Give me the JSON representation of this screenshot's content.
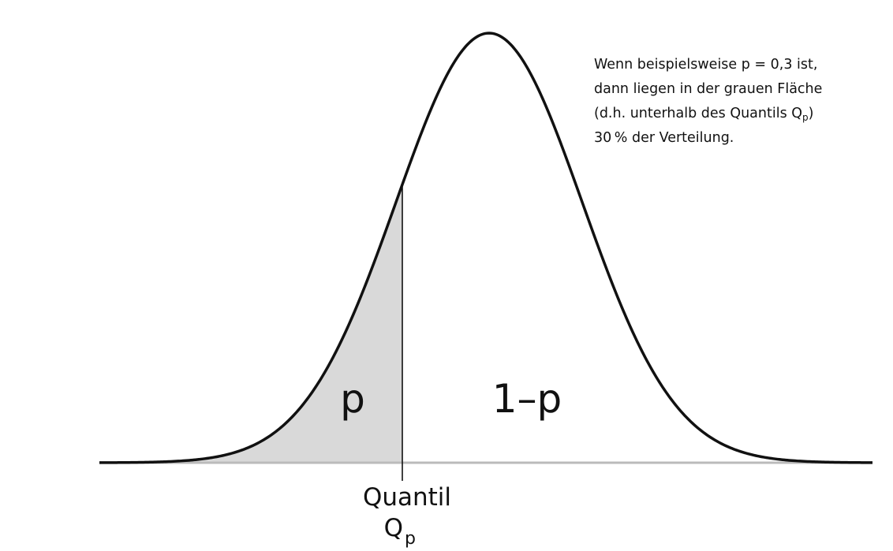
{
  "diagram": {
    "area_left_label": "p",
    "area_right_label": "1–p",
    "quantile_label": "Quantil",
    "quantile_symbol": "Q",
    "quantile_subscript": "p"
  },
  "note": {
    "line1": "Wenn beispielsweise p = 0,3 ist,",
    "line2": "dann liegen in der grauen Fläche",
    "line3_pre": "(d.h. unterhalb des Quantils Q",
    "line3_sub": "p",
    "line3_post": ")",
    "line4": "30 % der Verteilung."
  },
  "colors": {
    "curve": "#111111",
    "shaded_area": "#d9d9d9",
    "baseline": "#bbbbbb"
  }
}
